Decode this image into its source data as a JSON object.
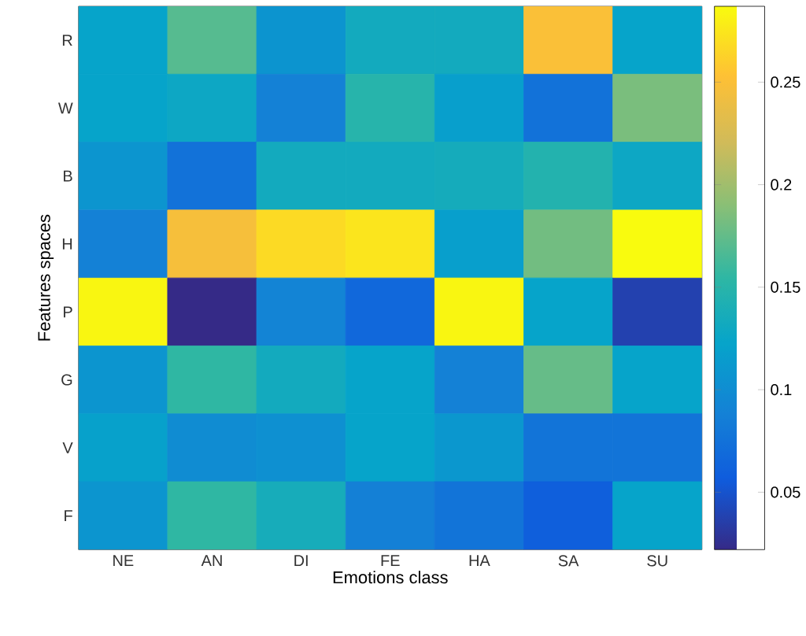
{
  "chart_data": {
    "type": "heatmap",
    "xlabel": "Emotions class",
    "ylabel": "Features spaces",
    "categories": [
      "NE",
      "AN",
      "DI",
      "FE",
      "HA",
      "SA",
      "SU"
    ],
    "y_categories": [
      "R",
      "W",
      "B",
      "H",
      "P",
      "G",
      "V",
      "F"
    ],
    "cells": [
      [
        0.123,
        0.17,
        0.107,
        0.133,
        0.133,
        0.25,
        0.123
      ],
      [
        0.123,
        0.128,
        0.088,
        0.149,
        0.118,
        0.075,
        0.184
      ],
      [
        0.108,
        0.075,
        0.133,
        0.133,
        0.135,
        0.146,
        0.128
      ],
      [
        0.088,
        0.247,
        0.268,
        0.274,
        0.118,
        0.181,
        0.287
      ],
      [
        0.284,
        0.022,
        0.091,
        0.067,
        0.284,
        0.123,
        0.038
      ],
      [
        0.108,
        0.155,
        0.133,
        0.123,
        0.088,
        0.176,
        0.123
      ],
      [
        0.12,
        0.099,
        0.103,
        0.123,
        0.11,
        0.077,
        0.077
      ],
      [
        0.108,
        0.155,
        0.136,
        0.087,
        0.077,
        0.059,
        0.123
      ]
    ],
    "clim": [
      0.022,
      0.287
    ],
    "cticks": [
      0.05,
      0.1,
      0.15,
      0.2,
      0.25
    ]
  }
}
